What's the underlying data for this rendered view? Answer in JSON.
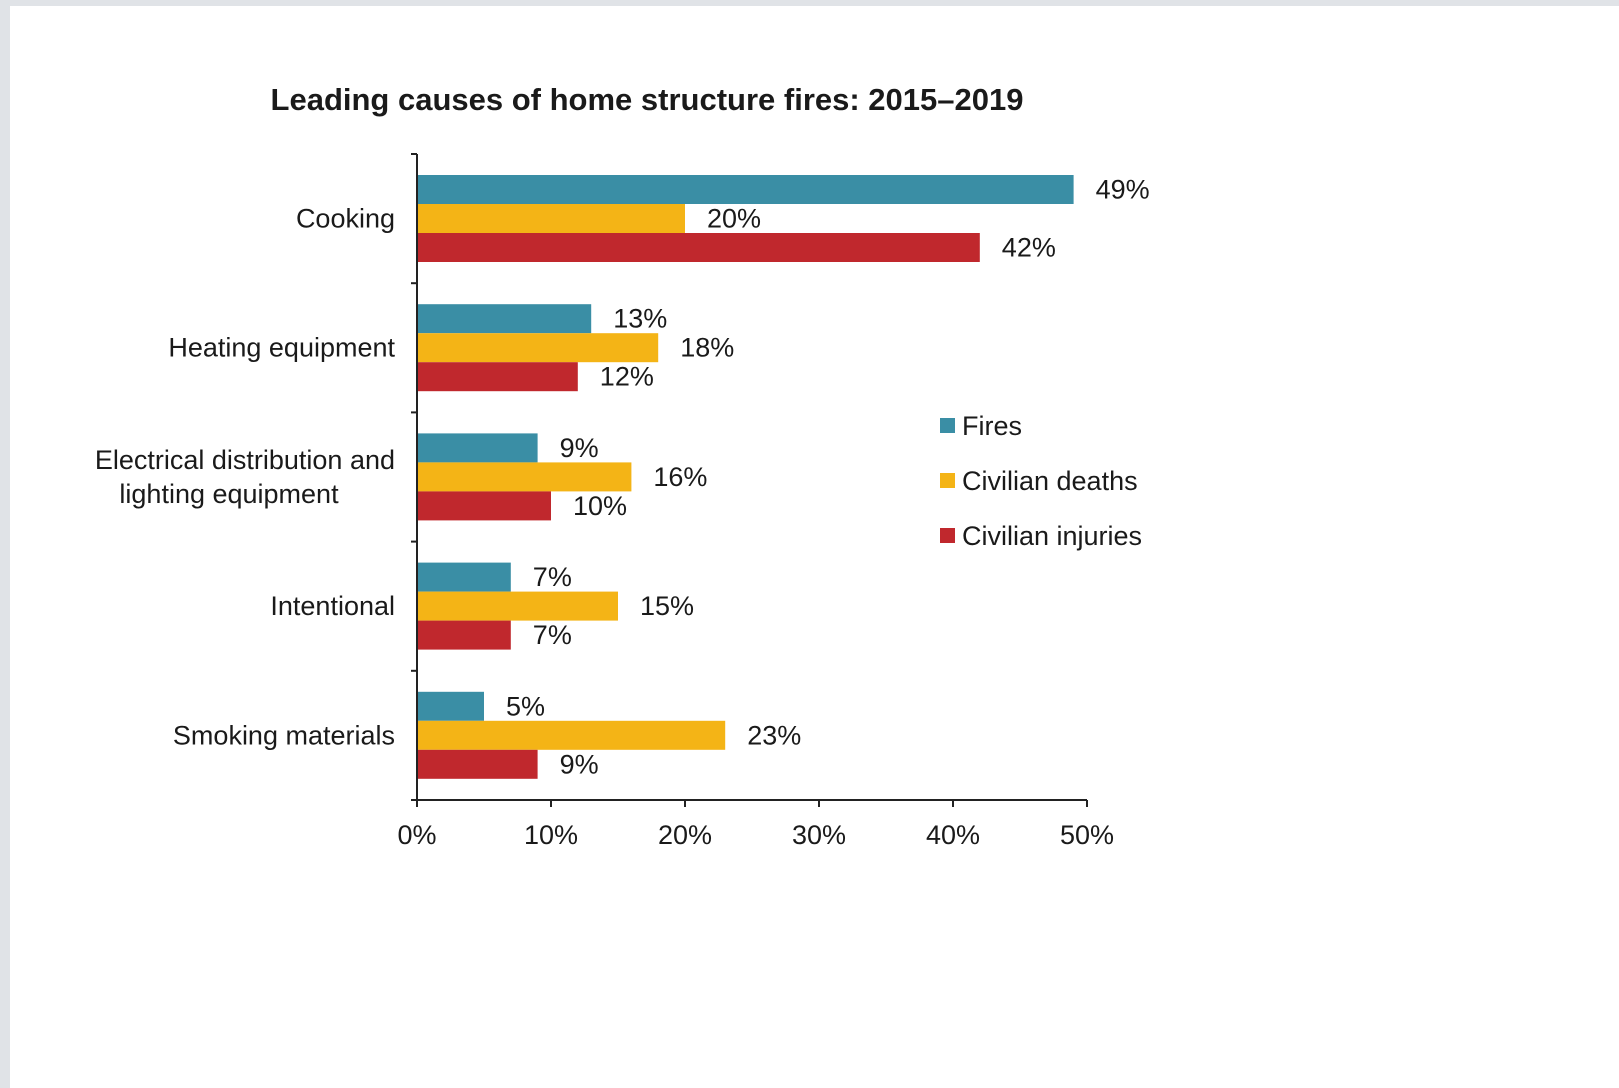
{
  "chart_data": {
    "type": "bar",
    "orientation": "horizontal",
    "title": "Leading causes of home structure fires: 2015–2019",
    "categories": [
      [
        "Cooking"
      ],
      [
        "Heating equipment"
      ],
      [
        "Electrical distribution and",
        "lighting equipment"
      ],
      [
        "Intentional"
      ],
      [
        "Smoking materials"
      ]
    ],
    "series": [
      {
        "name": "Fires",
        "color": "#3a8ea5",
        "values": [
          49,
          13,
          9,
          7,
          5
        ],
        "labels": [
          "49%",
          "13%",
          "9%",
          "7%",
          "5%"
        ]
      },
      {
        "name": "Civilian deaths",
        "color": "#f4b416",
        "values": [
          20,
          18,
          16,
          15,
          23
        ],
        "labels": [
          "20%",
          "18%",
          "16%",
          "15%",
          "23%"
        ]
      },
      {
        "name": "Civilian injuries",
        "color": "#c0282d",
        "values": [
          42,
          12,
          10,
          7,
          9
        ],
        "labels": [
          "42%",
          "12%",
          "10%",
          "7%",
          "9%"
        ]
      }
    ],
    "xlim": [
      0,
      50
    ],
    "x_ticks": [
      0,
      10,
      20,
      30,
      40,
      50
    ],
    "x_tick_labels": [
      "0%",
      "10%",
      "20%",
      "30%",
      "40%",
      "50%"
    ],
    "xlabel": "",
    "ylabel": "",
    "legend_position": "right",
    "grid": false
  }
}
